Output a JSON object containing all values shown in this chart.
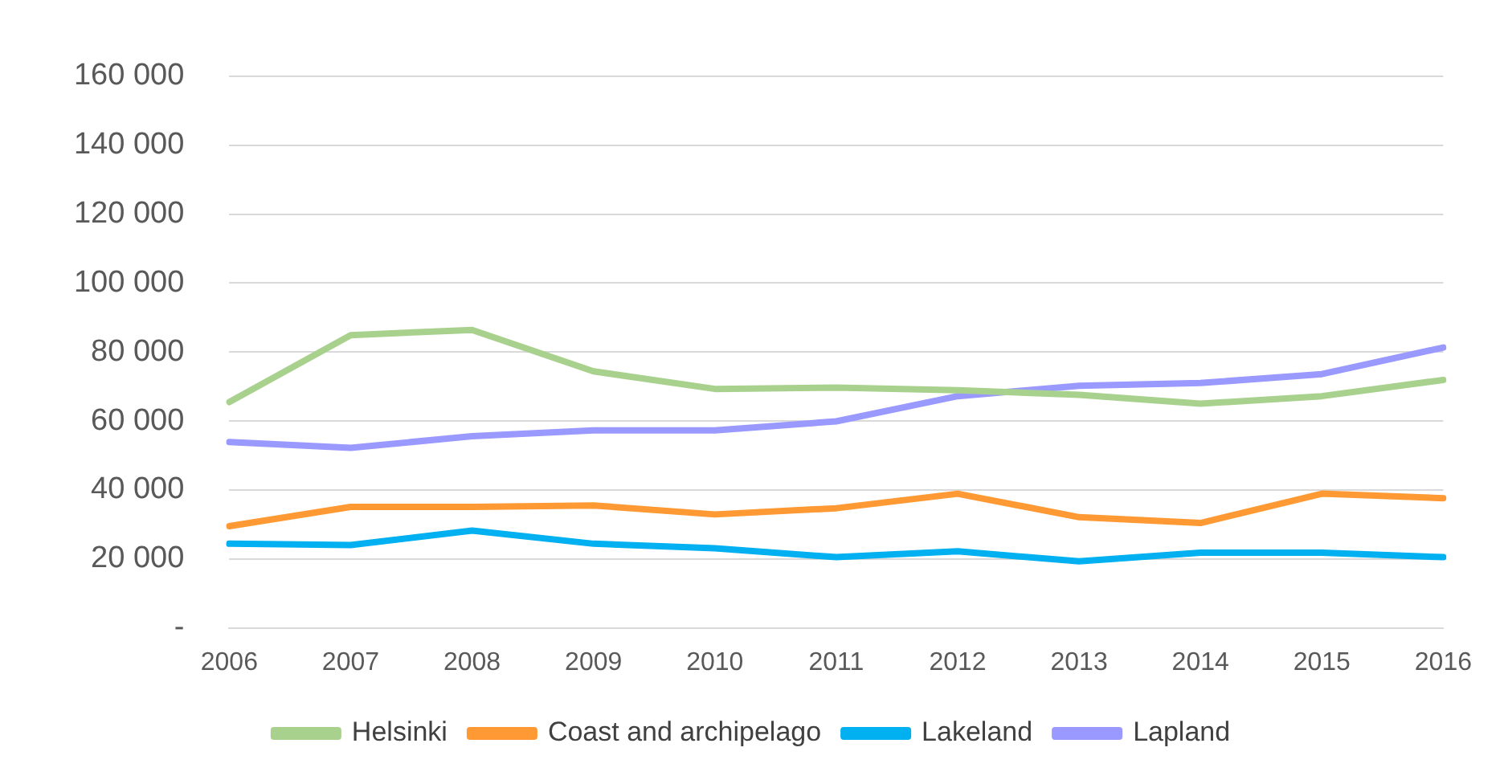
{
  "chart_data": {
    "type": "line",
    "categories": [
      "2006",
      "2007",
      "2008",
      "2009",
      "2010",
      "2011",
      "2012",
      "2013",
      "2014",
      "2015",
      "2016"
    ],
    "series": [
      {
        "name": "Helsinki",
        "color": "#a9d18e",
        "values": [
          65500,
          84900,
          86400,
          74400,
          69300,
          69700,
          68900,
          67600,
          65000,
          67200,
          71900
        ]
      },
      {
        "name": "Coast and archipelago",
        "color": "#ff9933",
        "values": [
          29500,
          35100,
          35100,
          35500,
          32900,
          34700,
          38900,
          32100,
          30400,
          38900,
          37600
        ]
      },
      {
        "name": "Lakeland",
        "color": "#00b0f0",
        "values": [
          24400,
          24000,
          28200,
          24400,
          23100,
          20500,
          22200,
          19300,
          21800,
          21800,
          20500
        ]
      },
      {
        "name": "Lapland",
        "color": "#9999ff",
        "values": [
          53900,
          52200,
          55600,
          57300,
          57300,
          59900,
          67200,
          70200,
          71000,
          73600,
          81300
        ]
      }
    ],
    "ylim": [
      0,
      160000
    ],
    "yticks": [
      {
        "value": 0,
        "label": "-"
      },
      {
        "value": 20000,
        "label": "20 000"
      },
      {
        "value": 40000,
        "label": "40 000"
      },
      {
        "value": 60000,
        "label": "60 000"
      },
      {
        "value": 80000,
        "label": "80 000"
      },
      {
        "value": 100000,
        "label": "100 000"
      },
      {
        "value": 120000,
        "label": "120 000"
      },
      {
        "value": 140000,
        "label": "140 000"
      },
      {
        "value": 160000,
        "label": "160 000"
      }
    ],
    "grid": "y",
    "legend": "bottom",
    "marker": "none",
    "line_style": "solid"
  }
}
